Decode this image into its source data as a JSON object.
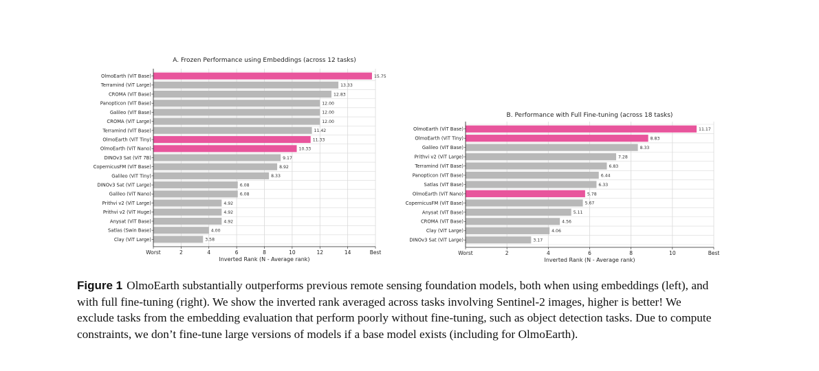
{
  "chart_data": [
    {
      "type": "bar",
      "orientation": "horizontal",
      "title": "A. Frozen Performance using Embeddings (across 12 tasks)",
      "xlabel": "Inverted Rank (N - Average rank)",
      "ylabel": "",
      "xlim": [
        0,
        16
      ],
      "xticks": [
        {
          "value": 0,
          "label": "Worst"
        },
        {
          "value": 2,
          "label": "2"
        },
        {
          "value": 4,
          "label": "4"
        },
        {
          "value": 6,
          "label": "6"
        },
        {
          "value": 8,
          "label": "8"
        },
        {
          "value": 10,
          "label": "10"
        },
        {
          "value": 12,
          "label": "12"
        },
        {
          "value": 14,
          "label": "14"
        },
        {
          "value": 16,
          "label": "Best"
        }
      ],
      "grid": true,
      "categories": [
        "OlmoEarth (ViT Base)",
        "Terramind (ViT Large)",
        "CROMA (ViT Base)",
        "Panopticon (ViT Base)",
        "Galileo (ViT Base)",
        "CROMA (ViT Large)",
        "Terramind (ViT Base)",
        "OlmoEarth (ViT Tiny)",
        "OlmoEarth (ViT Nano)",
        "DINOv3 Sat (ViT 7B)",
        "CopernicusFM (ViT Base)",
        "Galileo (ViT Tiny)",
        "DINOv3 Sat (ViT Large)",
        "Galileo (ViT Nano)",
        "Prithvi v2 (ViT Large)",
        "Prithvi v2 (ViT Huge)",
        "Anysat (ViT Base)",
        "Satlas (Swin Base)",
        "Clay (ViT Large)"
      ],
      "values": [
        15.75,
        13.33,
        12.83,
        12.0,
        12.0,
        12.0,
        11.42,
        11.33,
        10.33,
        9.17,
        8.92,
        8.33,
        6.08,
        6.08,
        4.92,
        4.92,
        4.92,
        4.0,
        3.58
      ],
      "value_labels": [
        "15.75",
        "13.33",
        "12.83",
        "12.00",
        "12.00",
        "12.00",
        "11.42",
        "11.33",
        "10.33",
        "9.17",
        "8.92",
        "8.33",
        "6.08",
        "6.08",
        "4.92",
        "4.92",
        "4.92",
        "4.00",
        "3.58"
      ],
      "highlighted": [
        true,
        false,
        false,
        false,
        false,
        false,
        false,
        true,
        true,
        false,
        false,
        false,
        false,
        false,
        false,
        false,
        false,
        false,
        false
      ]
    },
    {
      "type": "bar",
      "orientation": "horizontal",
      "title": "B. Performance with Full Fine-tuning (across 18 tasks)",
      "xlabel": "Inverted Rank (N - Average rank)",
      "ylabel": "",
      "xlim": [
        0,
        12
      ],
      "xticks": [
        {
          "value": 0,
          "label": "Worst"
        },
        {
          "value": 2,
          "label": "2"
        },
        {
          "value": 4,
          "label": "4"
        },
        {
          "value": 6,
          "label": "6"
        },
        {
          "value": 8,
          "label": "8"
        },
        {
          "value": 10,
          "label": "10"
        },
        {
          "value": 12,
          "label": "Best"
        }
      ],
      "grid": true,
      "categories": [
        "OlmoEarth (ViT Base)",
        "OlmoEarth (ViT Tiny)",
        "Galileo (ViT Base)",
        "Prithvi v2 (ViT Large)",
        "Terramind (ViT Base)",
        "Panopticon (ViT Base)",
        "Satlas (ViT Base)",
        "OlmoEarth (ViT Nano)",
        "CopernicusFM (ViT Base)",
        "Anysat (ViT Base)",
        "CROMA (ViT Base)",
        "Clay (ViT Large)",
        "DINOv3 Sat (ViT Large)"
      ],
      "values": [
        11.17,
        8.83,
        8.33,
        7.28,
        6.83,
        6.44,
        6.33,
        5.78,
        5.67,
        5.11,
        4.56,
        4.06,
        3.17
      ],
      "value_labels": [
        "11.17",
        "8.83",
        "8.33",
        "7.28",
        "6.83",
        "6.44",
        "6.33",
        "5.78",
        "5.67",
        "5.11",
        "4.56",
        "4.06",
        "3.17"
      ],
      "highlighted": [
        true,
        true,
        false,
        false,
        false,
        false,
        false,
        true,
        false,
        false,
        false,
        false,
        false
      ]
    }
  ],
  "colors": {
    "highlight": "#e8559c",
    "default": "#b8b8b8",
    "grid": "#d9d9d9",
    "axis": "#222222"
  },
  "caption": {
    "label": "Figure 1",
    "text": "OlmoEarth substantially outperforms previous remote sensing foundation models, both when using embeddings (left), and with full fine-tuning (right). We show the inverted rank averaged across tasks involving Sentinel-2 images, higher is better! We exclude tasks from the embedding evaluation that perform poorly without fine-tuning, such as object detection tasks. Due to compute constraints, we don’t fine-tune large versions of models if a base model exists (including for OlmoEarth)."
  }
}
